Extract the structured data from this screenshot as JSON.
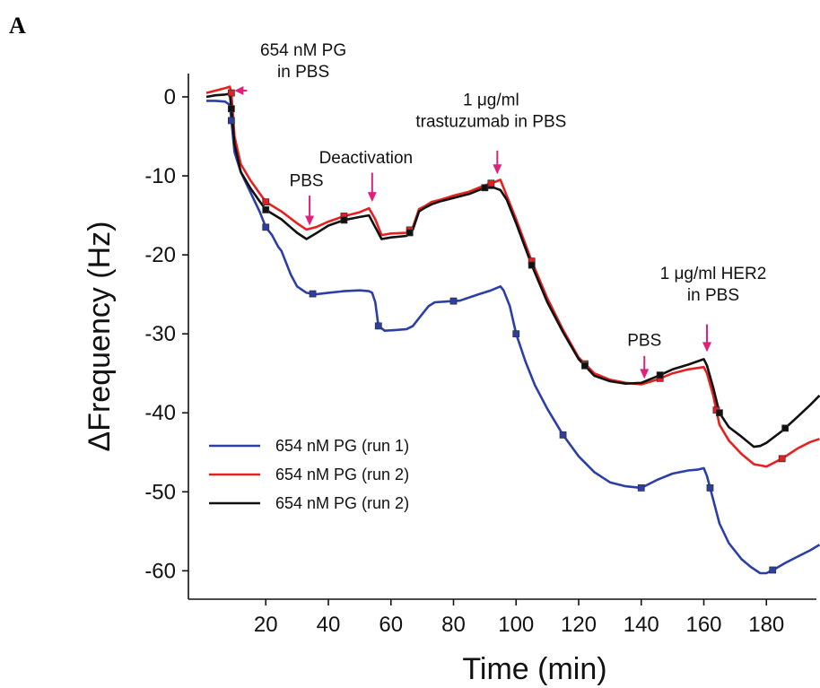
{
  "panel_label": "A",
  "chart_data": {
    "type": "line",
    "title": "",
    "xlabel": "Time (min)",
    "ylabel": "ΔFrequency (Hz)",
    "xlim": [
      0,
      197
    ],
    "ylim": [
      -67,
      3
    ],
    "xticks": [
      20,
      40,
      60,
      80,
      100,
      120,
      140,
      160,
      180
    ],
    "yticks": [
      0,
      -10,
      -20,
      -30,
      -40,
      -50,
      -60
    ],
    "grid": false,
    "legend_placement": "bottom-left",
    "series": [
      {
        "name": "654 nM PG (run 1)",
        "color": "#2b3fa6",
        "points": [
          [
            1,
            -0.5
          ],
          [
            4,
            -0.5
          ],
          [
            7,
            -0.6
          ],
          [
            8.5,
            -1
          ],
          [
            9,
            -3
          ],
          [
            10,
            -7
          ],
          [
            12,
            -9.5
          ],
          [
            15,
            -12
          ],
          [
            18,
            -14.5
          ],
          [
            20,
            -16.5
          ],
          [
            22,
            -17.5
          ],
          [
            24,
            -19
          ],
          [
            25,
            -19.5
          ],
          [
            28,
            -22.5
          ],
          [
            30,
            -24
          ],
          [
            33,
            -24.8
          ],
          [
            36,
            -25
          ],
          [
            40,
            -24.8
          ],
          [
            45,
            -24.6
          ],
          [
            50,
            -24.5
          ],
          [
            53,
            -24.6
          ],
          [
            54,
            -24.8
          ],
          [
            55,
            -26
          ],
          [
            56,
            -29
          ],
          [
            58,
            -29.6
          ],
          [
            62,
            -29.5
          ],
          [
            65,
            -29.4
          ],
          [
            67,
            -29
          ],
          [
            70,
            -27.5
          ],
          [
            72,
            -26.5
          ],
          [
            74,
            -26
          ],
          [
            78,
            -25.9
          ],
          [
            82,
            -25.8
          ],
          [
            88,
            -25
          ],
          [
            92,
            -24.5
          ],
          [
            95,
            -24
          ],
          [
            96,
            -24.5
          ],
          [
            98,
            -26.5
          ],
          [
            100,
            -30
          ],
          [
            103,
            -33.5
          ],
          [
            106,
            -36.5
          ],
          [
            110,
            -39.5
          ],
          [
            115,
            -42.8
          ],
          [
            120,
            -45.5
          ],
          [
            125,
            -47.5
          ],
          [
            130,
            -48.8
          ],
          [
            135,
            -49.3
          ],
          [
            140,
            -49.5
          ],
          [
            145,
            -48.5
          ],
          [
            150,
            -47.7
          ],
          [
            155,
            -47.3
          ],
          [
            158,
            -47.2
          ],
          [
            160,
            -47
          ],
          [
            161,
            -48
          ],
          [
            163,
            -51
          ],
          [
            165,
            -54
          ],
          [
            168,
            -56.5
          ],
          [
            172,
            -58.5
          ],
          [
            175,
            -59.5
          ],
          [
            178,
            -60.3
          ],
          [
            180,
            -60.3
          ],
          [
            183,
            -59.7
          ],
          [
            186,
            -59
          ],
          [
            190,
            -58.2
          ],
          [
            194,
            -57.4
          ],
          [
            197,
            -56.7
          ]
        ]
      },
      {
        "name": "654 nM PG (run 2)",
        "color": "#e62020",
        "points": [
          [
            1,
            0.5
          ],
          [
            4,
            0.8
          ],
          [
            7,
            1.1
          ],
          [
            8.5,
            1.3
          ],
          [
            9,
            0.5
          ],
          [
            10,
            -5
          ],
          [
            12,
            -8.5
          ],
          [
            15,
            -10.5
          ],
          [
            18,
            -12.2
          ],
          [
            20,
            -13.3
          ],
          [
            25,
            -14.5
          ],
          [
            30,
            -16
          ],
          [
            33,
            -16.8
          ],
          [
            36,
            -16.5
          ],
          [
            40,
            -15.8
          ],
          [
            45,
            -15.1
          ],
          [
            50,
            -14.6
          ],
          [
            53,
            -14.1
          ],
          [
            55,
            -15.5
          ],
          [
            57,
            -17.5
          ],
          [
            60,
            -17.3
          ],
          [
            65,
            -17.2
          ],
          [
            67,
            -16.5
          ],
          [
            69,
            -14.2
          ],
          [
            71,
            -13.8
          ],
          [
            73,
            -13.3
          ],
          [
            76,
            -13
          ],
          [
            80,
            -12.5
          ],
          [
            85,
            -12
          ],
          [
            90,
            -11.2
          ],
          [
            93,
            -10.8
          ],
          [
            95,
            -10.5
          ],
          [
            97,
            -12.5
          ],
          [
            100,
            -15.5
          ],
          [
            105,
            -20.8
          ],
          [
            110,
            -25.5
          ],
          [
            115,
            -29.5
          ],
          [
            120,
            -33
          ],
          [
            125,
            -35
          ],
          [
            130,
            -35.8
          ],
          [
            135,
            -36.2
          ],
          [
            140,
            -36.4
          ],
          [
            145,
            -35.8
          ],
          [
            150,
            -35
          ],
          [
            155,
            -34.5
          ],
          [
            160,
            -34.2
          ],
          [
            161,
            -35
          ],
          [
            163,
            -37.8
          ],
          [
            165,
            -41.5
          ],
          [
            168,
            -43.5
          ],
          [
            172,
            -45.2
          ],
          [
            176,
            -46.5
          ],
          [
            180,
            -46.8
          ],
          [
            185,
            -45.8
          ],
          [
            190,
            -44.5
          ],
          [
            194,
            -43.7
          ],
          [
            197,
            -43.3
          ]
        ]
      },
      {
        "name": "654 nM PG (run 2)",
        "color": "#111111",
        "points": [
          [
            1,
            0
          ],
          [
            4,
            0.2
          ],
          [
            7,
            0.3
          ],
          [
            8.5,
            0.4
          ],
          [
            9,
            -1.5
          ],
          [
            10,
            -6
          ],
          [
            12,
            -9.5
          ],
          [
            15,
            -11.5
          ],
          [
            18,
            -13.2
          ],
          [
            20,
            -14.3
          ],
          [
            25,
            -15.5
          ],
          [
            30,
            -17.2
          ],
          [
            33,
            -18
          ],
          [
            36,
            -17.3
          ],
          [
            40,
            -16.3
          ],
          [
            45,
            -15.6
          ],
          [
            50,
            -15.2
          ],
          [
            53,
            -15
          ],
          [
            55,
            -16.5
          ],
          [
            57,
            -18
          ],
          [
            60,
            -17.8
          ],
          [
            65,
            -17.6
          ],
          [
            67,
            -16.8
          ],
          [
            69,
            -14.5
          ],
          [
            71,
            -14
          ],
          [
            73,
            -13.6
          ],
          [
            76,
            -13.2
          ],
          [
            80,
            -12.8
          ],
          [
            85,
            -12.3
          ],
          [
            90,
            -11.5
          ],
          [
            93,
            -11.5
          ],
          [
            95,
            -11.8
          ],
          [
            97,
            -13
          ],
          [
            100,
            -16
          ],
          [
            105,
            -21.3
          ],
          [
            110,
            -26
          ],
          [
            115,
            -29.8
          ],
          [
            120,
            -33.2
          ],
          [
            125,
            -35.3
          ],
          [
            130,
            -36
          ],
          [
            135,
            -36.3
          ],
          [
            140,
            -36.2
          ],
          [
            145,
            -35.4
          ],
          [
            150,
            -34.5
          ],
          [
            155,
            -33.9
          ],
          [
            160,
            -33.2
          ],
          [
            161,
            -34
          ],
          [
            163,
            -36.8
          ],
          [
            165,
            -40
          ],
          [
            168,
            -41.8
          ],
          [
            172,
            -43
          ],
          [
            176,
            -44.3
          ],
          [
            178,
            -44.2
          ],
          [
            180,
            -43.8
          ],
          [
            185,
            -42.3
          ],
          [
            190,
            -40.5
          ],
          [
            194,
            -39
          ],
          [
            197,
            -37.8
          ]
        ]
      }
    ],
    "markers": [
      {
        "series": 0,
        "x": [
          9,
          20,
          35,
          56,
          80,
          100,
          115,
          140,
          162,
          182
        ]
      },
      {
        "series": 1,
        "x": [
          9,
          20,
          45,
          66,
          92,
          105,
          122,
          146,
          164,
          185
        ]
      },
      {
        "series": 2,
        "x": [
          9,
          20,
          45,
          66,
          90,
          105,
          122,
          146,
          165,
          186
        ]
      }
    ],
    "annotations": [
      {
        "lines": [
          "654 nM PG",
          "in PBS"
        ],
        "arrow_from": [
          14,
          0.8
        ],
        "arrow_to": [
          10,
          0.8
        ],
        "text_x": 32,
        "text_y": 2.5,
        "direction": "left"
      },
      {
        "lines": [
          "PBS"
        ],
        "arrow_x": 34,
        "arrow_top": -12.5,
        "arrow_bottom": -16.3,
        "text_x": 33,
        "text_y": -11.3,
        "direction": "down"
      },
      {
        "lines": [
          "Deactivation"
        ],
        "arrow_x": 54,
        "arrow_top": -9.6,
        "arrow_bottom": -13.3,
        "text_x": 52,
        "text_y": -8.4,
        "direction": "down"
      },
      {
        "lines": [
          "1 μg/ml",
          "trastuzumab in PBS"
        ],
        "arrow_x": 94,
        "arrow_top": -6.8,
        "arrow_bottom": -9.8,
        "text_x": 92,
        "text_y": -3.8,
        "direction": "down"
      },
      {
        "lines": [
          "PBS"
        ],
        "arrow_x": 141,
        "arrow_top": -32.8,
        "arrow_bottom": -35.7,
        "text_x": 141,
        "text_y": -31.5,
        "direction": "down"
      },
      {
        "lines": [
          "1 μg/ml HER2",
          "in PBS"
        ],
        "arrow_x": 161,
        "arrow_top": -28.8,
        "arrow_bottom": -32.3,
        "text_x": 163,
        "text_y": -25.8,
        "direction": "down"
      }
    ]
  }
}
